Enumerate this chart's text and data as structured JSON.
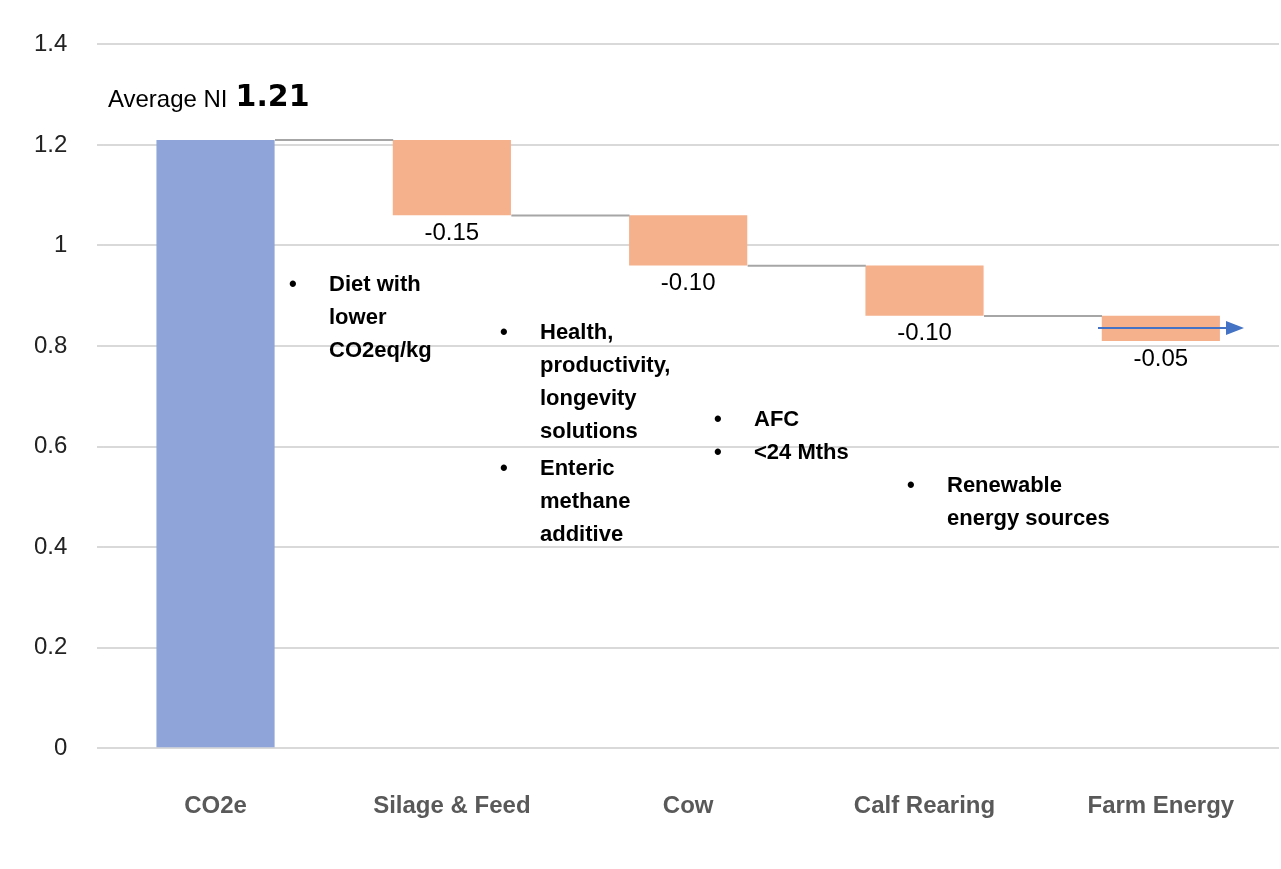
{
  "chart_data": {
    "type": "bar",
    "categories": [
      "CO2e",
      "Silage & Feed",
      "Cow",
      "Calf Rearing",
      "Farm Energy"
    ],
    "values": [
      1.21,
      -0.15,
      -0.1,
      -0.1,
      -0.05
    ],
    "base": [
      0,
      1.21,
      1.06,
      0.96,
      0.86
    ],
    "colors": [
      "#8fa5da",
      "#f5b08c",
      "#f5b08c",
      "#f5b08c",
      "#f5b08c"
    ],
    "value_labels": [
      "1.21",
      "-0.15",
      "-0.10",
      "-0.10",
      "-0.05"
    ],
    "ylim": [
      0,
      1.4
    ],
    "yticks": [
      0,
      0.2,
      0.4,
      0.6,
      0.8,
      1,
      1.2,
      1.4
    ],
    "grid": "y",
    "legend": false,
    "annotations": [
      {
        "text": "Average NI",
        "x": "CO2e",
        "y": 1.21
      },
      "• Diet with lower CO2eq/kg",
      "• Health, productivity, longevity solutions",
      "• Enteric methane additive",
      "• AFC",
      "• <24 Mths",
      "• Renewable energy sources"
    ]
  }
}
